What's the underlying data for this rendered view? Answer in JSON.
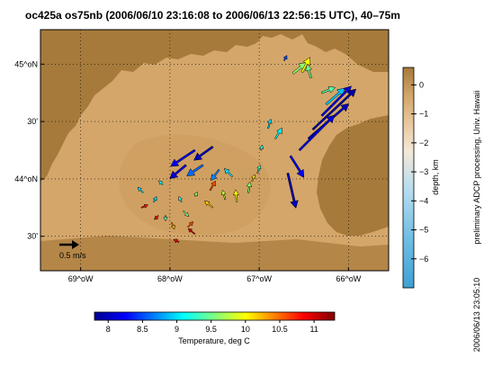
{
  "chart_data": {
    "type": "map-vector",
    "title": "oc425a os75nb (2006/06/10 23:16:08 to 2006/06/13 22:56:15 UTC), 40–75m",
    "lon_ticks": [
      {
        "value": -69.0,
        "label": "69^oW"
      },
      {
        "value": -68.0,
        "label": "68^oW"
      },
      {
        "value": -67.0,
        "label": "67^oW"
      },
      {
        "value": -66.0,
        "label": "66^oW"
      }
    ],
    "lat_ticks": [
      {
        "value": 45.0,
        "label": "45^oN"
      },
      {
        "value": 44.5,
        "label": "30'"
      },
      {
        "value": 44.0,
        "label": "44^oN"
      },
      {
        "value": 43.5,
        "label": "30'"
      }
    ],
    "xlim": [
      -69.45,
      -65.55
    ],
    "ylim": [
      43.2,
      45.3
    ],
    "scale_arrow": {
      "label": "0.5 m/s",
      "speed": 0.5
    },
    "depth_colorbar": {
      "label": "depth, km",
      "range": [
        -7,
        0.6
      ],
      "ticks": [
        {
          "value": 0,
          "label": "0"
        },
        {
          "value": -1,
          "label": "−1"
        },
        {
          "value": -2,
          "label": "−2"
        },
        {
          "value": -3,
          "label": "−3"
        },
        {
          "value": -4,
          "label": "−4"
        },
        {
          "value": -5,
          "label": "−5"
        },
        {
          "value": -6,
          "label": "−6"
        }
      ]
    },
    "temperature_colorbar": {
      "label": "Temperature, deg C",
      "range": [
        7.8,
        11.3
      ],
      "ticks": [
        {
          "value": 8,
          "label": "8"
        },
        {
          "value": 8.5,
          "label": "8.5"
        },
        {
          "value": 9,
          "label": "9"
        },
        {
          "value": 9.5,
          "label": "9.5"
        },
        {
          "value": 10,
          "label": "10"
        },
        {
          "value": 10.5,
          "label": "10.5"
        },
        {
          "value": 11,
          "label": "11"
        }
      ]
    },
    "vectors": [
      {
        "lon": -66.72,
        "lat": 45.03,
        "u": 0.02,
        "v": 0.04,
        "temp": 8.5
      },
      {
        "lon": -66.62,
        "lat": 44.92,
        "u": 0.1,
        "v": 0.08,
        "temp": 9.6
      },
      {
        "lon": -66.52,
        "lat": 44.93,
        "u": 0.06,
        "v": 0.11,
        "temp": 10.0
      },
      {
        "lon": -66.42,
        "lat": 44.88,
        "u": -0.03,
        "v": 0.1,
        "temp": 9.5
      },
      {
        "lon": -66.3,
        "lat": 44.75,
        "u": 0.1,
        "v": 0.04,
        "temp": 9.4
      },
      {
        "lon": -66.25,
        "lat": 44.65,
        "u": 0.14,
        "v": 0.12,
        "temp": 8.9
      },
      {
        "lon": -66.3,
        "lat": 44.55,
        "u": 0.22,
        "v": 0.22,
        "temp": 8.1
      },
      {
        "lon": -66.4,
        "lat": 44.43,
        "u": 0.32,
        "v": 0.3,
        "temp": 7.9
      },
      {
        "lon": -66.45,
        "lat": 44.35,
        "u": 0.3,
        "v": 0.26,
        "temp": 8.0
      },
      {
        "lon": -66.55,
        "lat": 44.25,
        "u": 0.26,
        "v": 0.26,
        "temp": 8.1
      },
      {
        "lon": -66.65,
        "lat": 44.2,
        "u": 0.1,
        "v": -0.16,
        "temp": 8.2
      },
      {
        "lon": -66.68,
        "lat": 44.05,
        "u": 0.06,
        "v": -0.26,
        "temp": 8.0
      },
      {
        "lon": -66.9,
        "lat": 44.44,
        "u": 0.02,
        "v": 0.07,
        "temp": 9.0
      },
      {
        "lon": -66.82,
        "lat": 44.35,
        "u": 0.05,
        "v": 0.08,
        "temp": 9.1
      },
      {
        "lon": -66.98,
        "lat": 44.25,
        "u": 0.01,
        "v": 0.04,
        "temp": 9.2
      },
      {
        "lon": -67.52,
        "lat": 44.28,
        "u": -0.14,
        "v": -0.1,
        "temp": 8.0
      },
      {
        "lon": -67.72,
        "lat": 44.25,
        "u": -0.18,
        "v": -0.12,
        "temp": 8.2
      },
      {
        "lon": -67.82,
        "lat": 44.12,
        "u": -0.12,
        "v": -0.1,
        "temp": 8.1
      },
      {
        "lon": -67.63,
        "lat": 44.12,
        "u": -0.12,
        "v": -0.08,
        "temp": 8.6
      },
      {
        "lon": -67.45,
        "lat": 44.08,
        "u": -0.06,
        "v": -0.08,
        "temp": 8.7
      },
      {
        "lon": -67.3,
        "lat": 44.02,
        "u": -0.06,
        "v": 0.06,
        "temp": 9.0
      },
      {
        "lon": -67.02,
        "lat": 44.05,
        "u": 0.02,
        "v": 0.06,
        "temp": 9.3
      },
      {
        "lon": -68.08,
        "lat": 43.95,
        "u": -0.03,
        "v": 0.03,
        "temp": 9.1
      },
      {
        "lon": -68.3,
        "lat": 43.88,
        "u": -0.04,
        "v": 0.04,
        "temp": 9.0
      },
      {
        "lon": -68.18,
        "lat": 43.8,
        "u": 0.02,
        "v": 0.04,
        "temp": 9.0
      },
      {
        "lon": -67.87,
        "lat": 43.8,
        "u": -0.02,
        "v": 0.04,
        "temp": 9.2
      },
      {
        "lon": -67.72,
        "lat": 43.85,
        "u": 0.02,
        "v": 0.03,
        "temp": 9.6
      },
      {
        "lon": -67.55,
        "lat": 43.9,
        "u": 0.04,
        "v": 0.07,
        "temp": 10.6
      },
      {
        "lon": -67.52,
        "lat": 43.75,
        "u": -0.06,
        "v": 0.05,
        "temp": 10.2
      },
      {
        "lon": -67.38,
        "lat": 43.82,
        "u": -0.02,
        "v": 0.07,
        "temp": 9.8
      },
      {
        "lon": -67.25,
        "lat": 43.8,
        "u": -0.01,
        "v": 0.09,
        "temp": 10.0
      },
      {
        "lon": -67.12,
        "lat": 43.88,
        "u": 0.01,
        "v": 0.08,
        "temp": 9.6
      },
      {
        "lon": -67.08,
        "lat": 43.98,
        "u": 0.02,
        "v": 0.05,
        "temp": 10.1
      },
      {
        "lon": -67.85,
        "lat": 43.72,
        "u": 0.04,
        "v": -0.04,
        "temp": 9.5
      },
      {
        "lon": -68.32,
        "lat": 43.75,
        "u": 0.05,
        "v": 0.02,
        "temp": 10.8
      },
      {
        "lon": -68.13,
        "lat": 43.68,
        "u": -0.03,
        "v": -0.03,
        "temp": 10.9
      },
      {
        "lon": -68.05,
        "lat": 43.68,
        "u": 0.0,
        "v": -0.04,
        "temp": 9.3
      },
      {
        "lon": -67.98,
        "lat": 43.62,
        "u": 0.02,
        "v": -0.05,
        "temp": 10.3
      },
      {
        "lon": -67.8,
        "lat": 43.58,
        "u": 0.04,
        "v": 0.04,
        "temp": 10.6
      },
      {
        "lon": -67.72,
        "lat": 43.52,
        "u": -0.05,
        "v": 0.04,
        "temp": 11.0
      },
      {
        "lon": -67.9,
        "lat": 43.45,
        "u": -0.04,
        "v": 0.02,
        "temp": 10.9
      }
    ]
  },
  "side_text": {
    "processing": "preliminary ADCP processing,  Univ. Hawaii",
    "timestamp": "2006/06/13 23:05:10"
  }
}
